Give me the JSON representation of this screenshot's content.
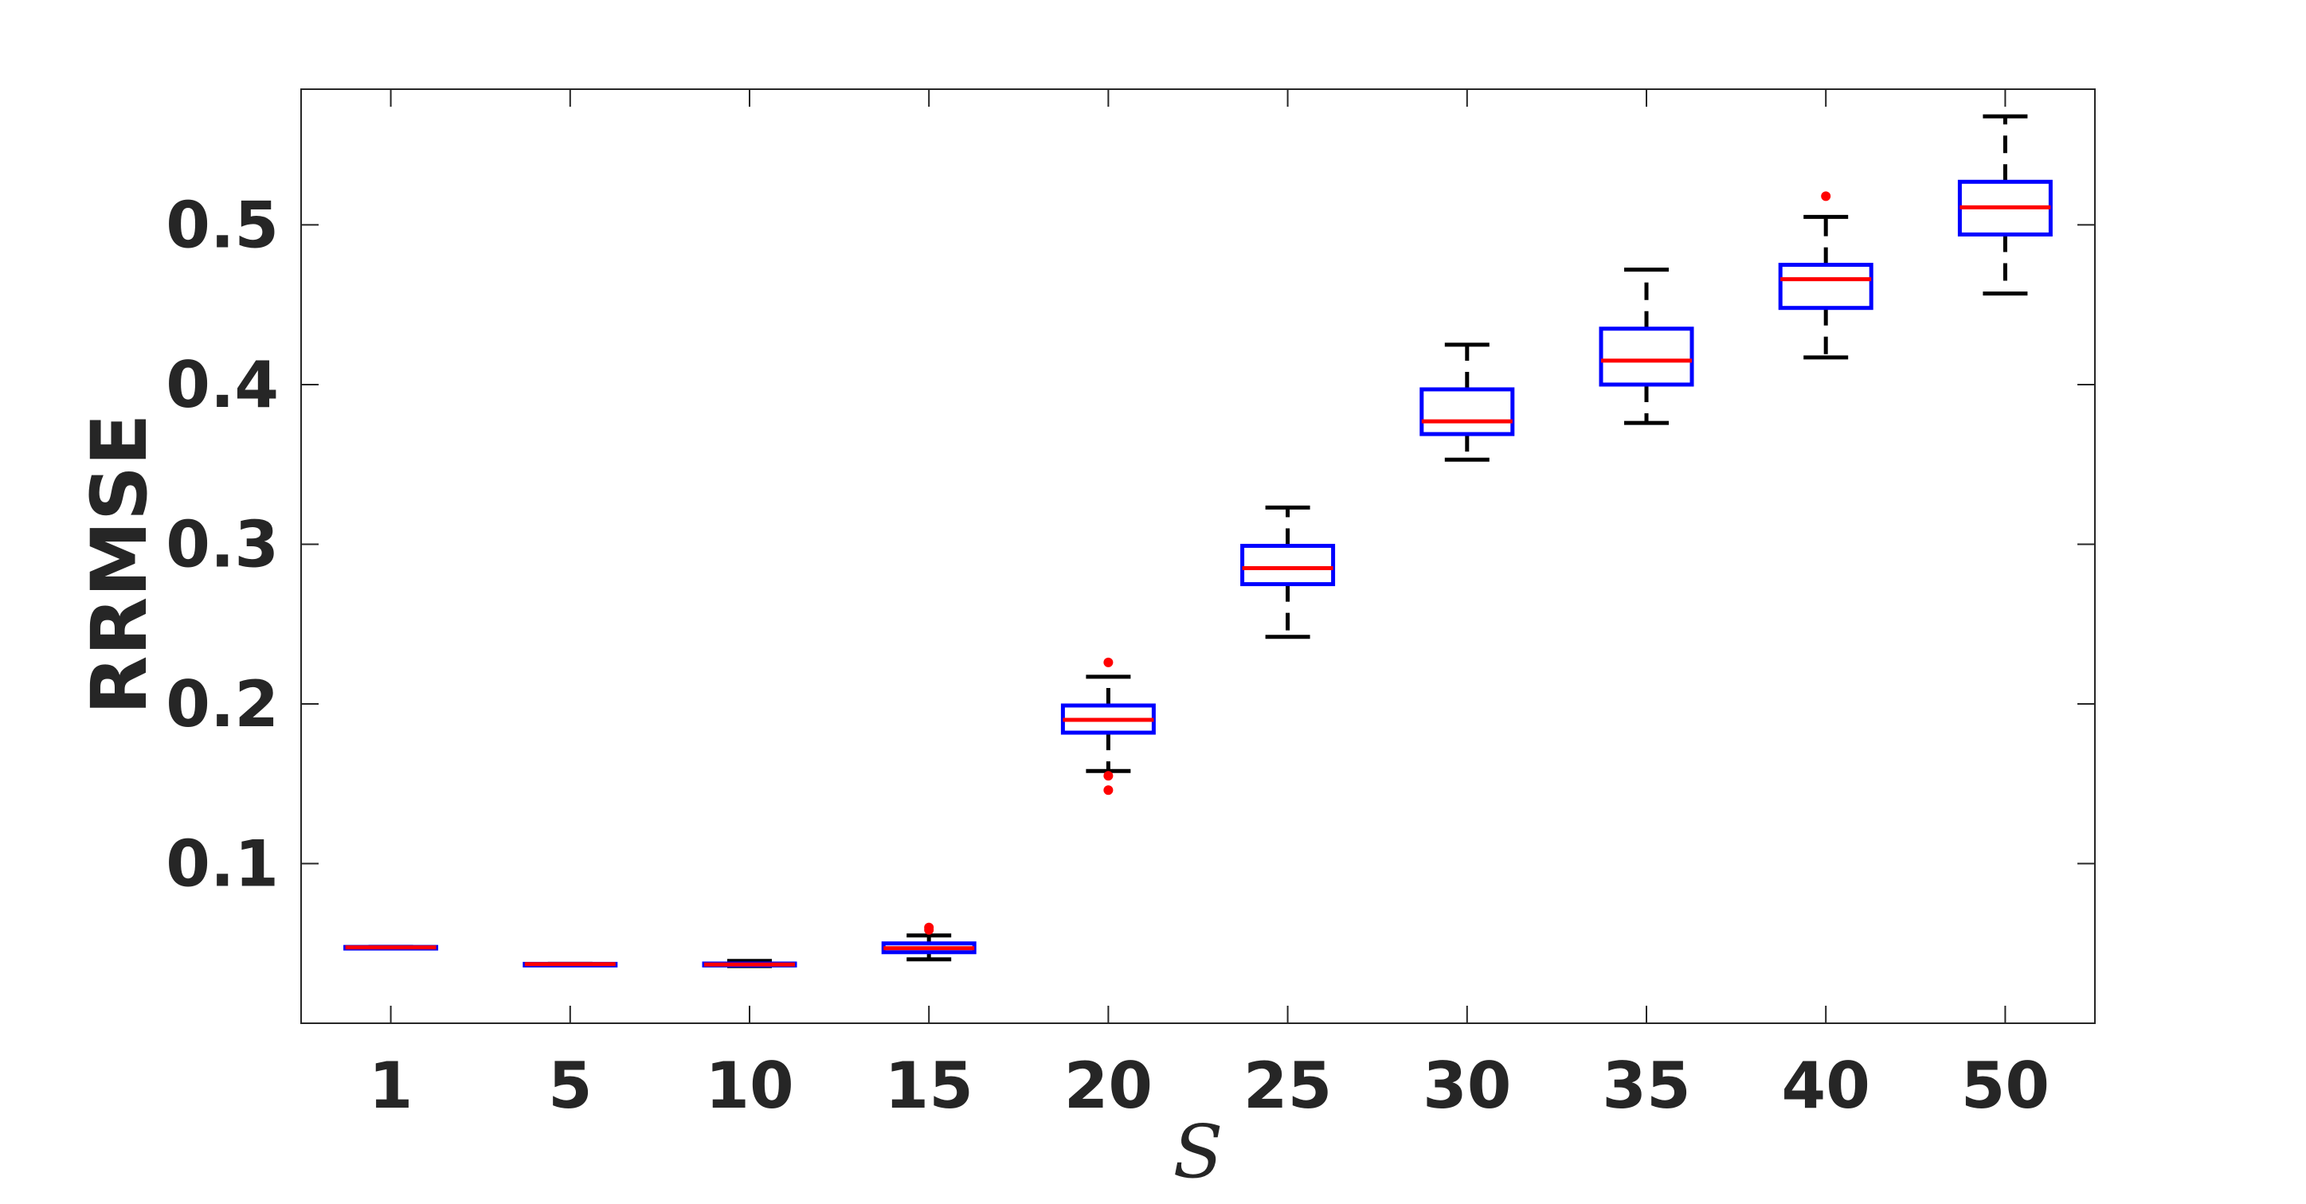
{
  "chart_data": {
    "type": "boxplot",
    "xlabel": "S",
    "ylabel": "RRMSE",
    "categories": [
      "1",
      "5",
      "10",
      "15",
      "20",
      "25",
      "30",
      "35",
      "40",
      "50"
    ],
    "ylim": [
      0.0,
      0.585
    ],
    "yticks": [
      0.1,
      0.2,
      0.3,
      0.4,
      0.5
    ],
    "ytick_labels": [
      "0.1",
      "0.2",
      "0.3",
      "0.4",
      "0.5"
    ],
    "grid": false,
    "boxes": [
      {
        "category": "1",
        "whisker_low": 0.0473,
        "q1": 0.0473,
        "median": 0.0475,
        "q3": 0.0478,
        "whisker_high": 0.0478,
        "outliers": []
      },
      {
        "category": "5",
        "whisker_low": 0.0368,
        "q1": 0.0368,
        "median": 0.037,
        "q3": 0.0372,
        "whisker_high": 0.0372,
        "outliers": []
      },
      {
        "category": "10",
        "whisker_low": 0.0358,
        "q1": 0.0362,
        "median": 0.0368,
        "q3": 0.0374,
        "whisker_high": 0.039,
        "outliers": []
      },
      {
        "category": "15",
        "whisker_low": 0.04,
        "q1": 0.0445,
        "median": 0.047,
        "q3": 0.05,
        "whisker_high": 0.055,
        "outliers": [
          0.0585,
          0.06
        ]
      },
      {
        "category": "20",
        "whisker_low": 0.158,
        "q1": 0.182,
        "median": 0.19,
        "q3": 0.199,
        "whisker_high": 0.217,
        "outliers": [
          0.226,
          0.155,
          0.146
        ]
      },
      {
        "category": "25",
        "whisker_low": 0.242,
        "q1": 0.275,
        "median": 0.285,
        "q3": 0.299,
        "whisker_high": 0.323,
        "outliers": []
      },
      {
        "category": "30",
        "whisker_low": 0.353,
        "q1": 0.369,
        "median": 0.377,
        "q3": 0.397,
        "whisker_high": 0.425,
        "outliers": []
      },
      {
        "category": "35",
        "whisker_low": 0.376,
        "q1": 0.4,
        "median": 0.415,
        "q3": 0.435,
        "whisker_high": 0.472,
        "outliers": []
      },
      {
        "category": "40",
        "whisker_low": 0.417,
        "q1": 0.448,
        "median": 0.466,
        "q3": 0.475,
        "whisker_high": 0.505,
        "outliers": [
          0.518
        ]
      },
      {
        "category": "50",
        "whisker_low": 0.457,
        "q1": 0.494,
        "median": 0.511,
        "q3": 0.527,
        "whisker_high": 0.568,
        "outliers": []
      }
    ],
    "colors": {
      "box": "#0000ff",
      "median": "#ff0000",
      "whisker": "#000000",
      "outlier": "#ff0000",
      "axis": "#262626",
      "frame": "#262626"
    }
  }
}
